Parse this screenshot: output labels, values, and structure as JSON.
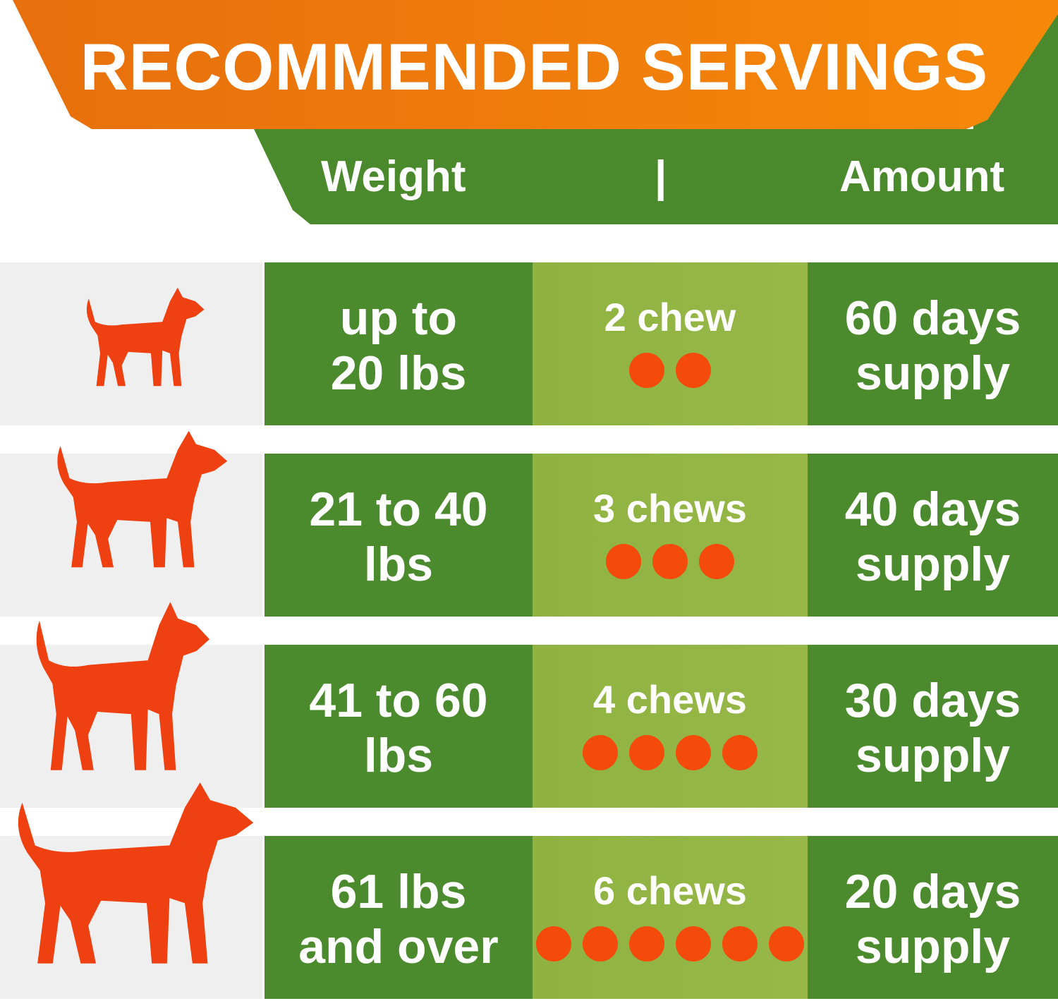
{
  "title": "RECOMMENDED SERVINGS",
  "header": {
    "weight": "Weight",
    "divider": "|",
    "amount": "Amount"
  },
  "colors": {
    "orange": "#f08010",
    "green": "#4b8a2d",
    "light_green": "#94b545",
    "dot": "#f44a0c",
    "dog": "#ee4010"
  },
  "rows": [
    {
      "dog_icon": "small-dog-icon",
      "weight": [
        "up to",
        "20 lbs"
      ],
      "chews": "2 chew",
      "chew_count": 2,
      "supply": [
        "60 days",
        "supply"
      ]
    },
    {
      "dog_icon": "beagle-dog-icon",
      "weight": [
        "21 to 40",
        "lbs"
      ],
      "chews": "3 chews",
      "chew_count": 3,
      "supply": [
        "40 days",
        "supply"
      ]
    },
    {
      "dog_icon": "terrier-dog-icon",
      "weight": [
        "41 to 60",
        "lbs"
      ],
      "chews": "4 chews",
      "chew_count": 4,
      "supply": [
        "30 days",
        "supply"
      ]
    },
    {
      "dog_icon": "large-dog-icon",
      "weight": [
        "61 lbs",
        "and over"
      ],
      "chews": "6 chews",
      "chew_count": 6,
      "supply": [
        "20 days",
        "supply"
      ]
    }
  ]
}
